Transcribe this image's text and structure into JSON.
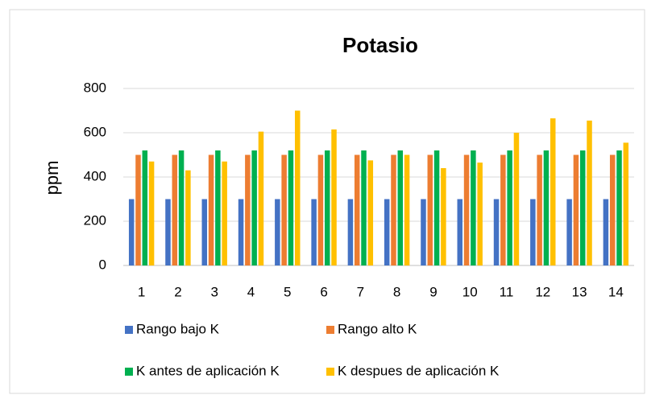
{
  "chart_data": {
    "type": "bar",
    "title": "Potasio",
    "y_label": "ppm",
    "categories": [
      "1",
      "2",
      "3",
      "4",
      "5",
      "6",
      "7",
      "8",
      "9",
      "10",
      "11",
      "12",
      "13",
      "14"
    ],
    "series": [
      {
        "name": "Rango bajo K",
        "color": "#4472c4",
        "values": [
          300,
          300,
          300,
          300,
          300,
          300,
          300,
          300,
          300,
          300,
          300,
          300,
          300,
          300
        ]
      },
      {
        "name": "Rango alto K",
        "color": "#ed7d31",
        "values": [
          500,
          500,
          500,
          500,
          500,
          500,
          500,
          500,
          500,
          500,
          500,
          500,
          500,
          500
        ]
      },
      {
        "name": "K antes de aplicación K",
        "color": "#00b050",
        "values": [
          520,
          520,
          520,
          520,
          520,
          520,
          520,
          520,
          520,
          520,
          520,
          520,
          520,
          520
        ]
      },
      {
        "name": "K despues de aplicación K",
        "color": "#ffc000",
        "values": [
          470,
          430,
          470,
          605,
          700,
          615,
          475,
          500,
          440,
          465,
          600,
          665,
          655,
          555
        ]
      }
    ],
    "ylim": [
      0,
      800
    ],
    "yticks": [
      0,
      200,
      400,
      600,
      800
    ],
    "grid": true,
    "legend": "bottom"
  }
}
